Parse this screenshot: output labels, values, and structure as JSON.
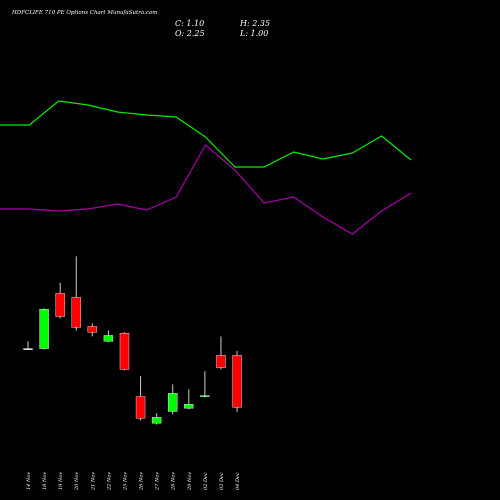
{
  "chart_data": [
    {
      "type": "candlestick",
      "title": "HDFCLIFE 710 PE Options Chart MunafaSutra.com",
      "ohlc_labels": [
        "C: 1.10",
        "H: 2.35",
        "O: 2.25",
        "L: 1.00"
      ],
      "categories": [
        "14 Nov",
        "18 Nov",
        "19 Nov",
        "20 Nov",
        "21 Nov",
        "22 Nov",
        "25 Nov",
        "26 Nov",
        "27 Nov",
        "28 Nov",
        "29 Nov",
        "02 Dec",
        "03 Dec",
        "04 Dec"
      ],
      "open": [
        2.4,
        2.4,
        3.62,
        3.53,
        2.89,
        2.56,
        2.74,
        1.34,
        0.75,
        1.01,
        1.08,
        1.34,
        2.25,
        2.25
      ],
      "high": [
        2.56,
        3.29,
        3.86,
        4.44,
        2.96,
        2.8,
        2.76,
        1.79,
        0.97,
        1.61,
        1.5,
        1.9,
        2.67,
        2.35
      ],
      "low": [
        2.38,
        2.38,
        3.07,
        2.8,
        2.67,
        2.54,
        1.92,
        0.81,
        0.72,
        0.95,
        1.06,
        1.32,
        1.94,
        1.0
      ],
      "close": [
        2.4,
        3.27,
        3.11,
        2.87,
        2.76,
        2.69,
        1.94,
        0.86,
        0.88,
        1.41,
        1.17,
        1.36,
        1.98,
        1.1
      ],
      "up_color": "#00ff00",
      "down_color": "#ff0000",
      "flat_color": "#ffffff",
      "ylim": [
        0.6,
        5.0
      ]
    },
    {
      "type": "line",
      "x": [
        0,
        1,
        2,
        3,
        4,
        5,
        6,
        7,
        8,
        9,
        10,
        11,
        12,
        13,
        14
      ],
      "xlim": [
        0,
        14
      ],
      "ylim": [
        0,
        200
      ],
      "series": [
        {
          "color": "#00ee00",
          "values": [
            175,
            175,
            199,
            195,
            188,
            185,
            183,
            163,
            133,
            133,
            148,
            141,
            147,
            164,
            140
          ]
        },
        {
          "color": "#aa00aa",
          "values": [
            91,
            91,
            89,
            91,
            96,
            90,
            103,
            155,
            130,
            97,
            103,
            83,
            66,
            89,
            107
          ]
        }
      ]
    }
  ]
}
